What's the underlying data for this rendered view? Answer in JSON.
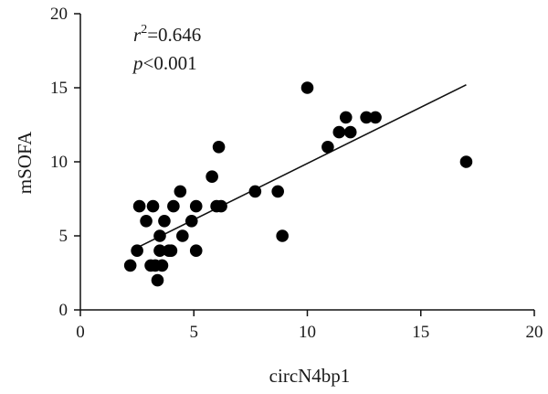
{
  "chart_data": {
    "type": "scatter",
    "title": "",
    "xlabel": "circN4bp1",
    "ylabel": "mSOFA",
    "xlim": [
      0,
      20
    ],
    "ylim": [
      0,
      20
    ],
    "xticks": [
      0,
      5,
      10,
      15,
      20
    ],
    "yticks": [
      0,
      5,
      10,
      15,
      20
    ],
    "grid": false,
    "annotations": {
      "r2_symbol": "r",
      "r2_exponent": "2",
      "r2_value": "=0.646",
      "p_symbol": "p",
      "p_value": "<0.001"
    },
    "points": [
      {
        "x": 2.2,
        "y": 3
      },
      {
        "x": 2.5,
        "y": 4
      },
      {
        "x": 2.6,
        "y": 7
      },
      {
        "x": 2.9,
        "y": 6
      },
      {
        "x": 3.1,
        "y": 3
      },
      {
        "x": 3.2,
        "y": 7
      },
      {
        "x": 3.3,
        "y": 3
      },
      {
        "x": 3.4,
        "y": 2
      },
      {
        "x": 3.5,
        "y": 5
      },
      {
        "x": 3.5,
        "y": 4
      },
      {
        "x": 3.6,
        "y": 3
      },
      {
        "x": 3.7,
        "y": 6
      },
      {
        "x": 3.9,
        "y": 4
      },
      {
        "x": 4.0,
        "y": 4
      },
      {
        "x": 4.1,
        "y": 7
      },
      {
        "x": 4.4,
        "y": 8
      },
      {
        "x": 4.5,
        "y": 5
      },
      {
        "x": 4.9,
        "y": 6
      },
      {
        "x": 5.1,
        "y": 4
      },
      {
        "x": 5.1,
        "y": 7
      },
      {
        "x": 5.8,
        "y": 9
      },
      {
        "x": 6.0,
        "y": 7
      },
      {
        "x": 6.1,
        "y": 11
      },
      {
        "x": 6.2,
        "y": 7
      },
      {
        "x": 7.7,
        "y": 8
      },
      {
        "x": 8.7,
        "y": 8
      },
      {
        "x": 8.9,
        "y": 5
      },
      {
        "x": 10.0,
        "y": 15
      },
      {
        "x": 10.9,
        "y": 11
      },
      {
        "x": 11.4,
        "y": 12
      },
      {
        "x": 11.7,
        "y": 13
      },
      {
        "x": 11.9,
        "y": 12
      },
      {
        "x": 12.6,
        "y": 13
      },
      {
        "x": 13.0,
        "y": 13
      },
      {
        "x": 17.0,
        "y": 10
      }
    ],
    "regression_line": {
      "x1": 2.5,
      "y1": 4.2,
      "x2": 17.0,
      "y2": 15.2
    }
  }
}
